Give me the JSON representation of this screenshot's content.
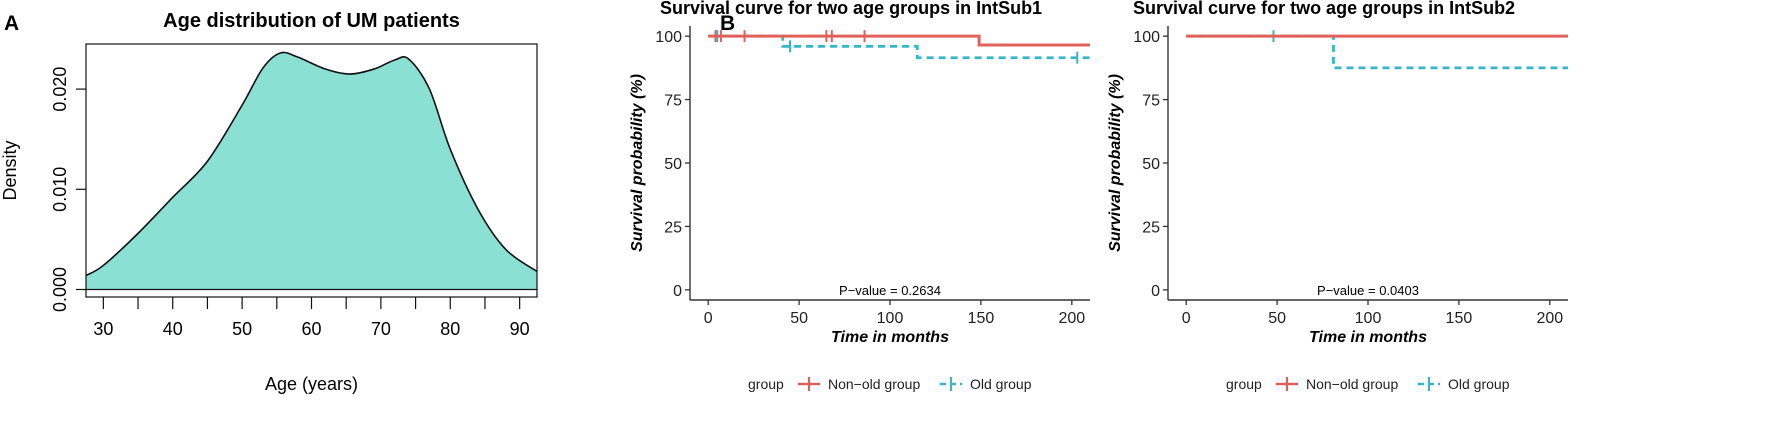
{
  "panels": {
    "a_letter": "A",
    "b_letter": "B"
  },
  "colors": {
    "density_fill": "#8ae0d2",
    "non_old": "#e0605a",
    "old": "#35b8c4",
    "axis": "#333333"
  },
  "chart_data": [
    {
      "type": "area",
      "title": "Age distribution of UM patients",
      "xlabel": "Age (years)",
      "ylabel": "Density",
      "xlim": [
        27.5,
        92.5
      ],
      "ylim": [
        -0.00075,
        0.0245
      ],
      "x_ticks": [
        30,
        40,
        50,
        60,
        70,
        80,
        90
      ],
      "x_tick_labels": [
        "30",
        "40",
        "50",
        "60",
        "70",
        "80",
        "90"
      ],
      "x_minor_ticks": [
        35,
        45,
        55,
        65,
        75,
        85
      ],
      "y_ticks": [
        0.0,
        0.01,
        0.02
      ],
      "y_tick_labels": [
        "0.000",
        "0.010",
        "0.020"
      ],
      "x": [
        27.5,
        30,
        35,
        40,
        45,
        50,
        53,
        55.5,
        58,
        62,
        65.5,
        69,
        72,
        74,
        77,
        80,
        84,
        88,
        92.5
      ],
      "y": [
        0.0014,
        0.0024,
        0.0056,
        0.0092,
        0.0128,
        0.0184,
        0.0221,
        0.0236,
        0.0232,
        0.022,
        0.0215,
        0.022,
        0.0229,
        0.023,
        0.02,
        0.014,
        0.008,
        0.004,
        0.0018
      ]
    },
    {
      "type": "line",
      "title": "Survival curve for two age groups in IntSub1",
      "xlabel": "Time in months",
      "ylabel": "Survival probability (%)",
      "xlim": [
        -10,
        210
      ],
      "ylim": [
        -4,
        104
      ],
      "x_ticks": [
        0,
        50,
        100,
        150,
        200
      ],
      "x_tick_labels": [
        "0",
        "50",
        "100",
        "150",
        "200"
      ],
      "y_ticks": [
        0,
        25,
        50,
        75,
        100
      ],
      "y_tick_labels": [
        "0",
        "25",
        "50",
        "75",
        "100"
      ],
      "annotation": "P−value = 0.2634",
      "annotation_at": [
        100,
        0
      ],
      "series": [
        {
          "name": "Non−old group",
          "steps": [
            [
              0,
              100
            ],
            [
              149,
              100
            ],
            [
              149,
              96.5
            ],
            [
              210,
              96.5
            ]
          ],
          "censor": [
            4,
            7,
            20,
            65,
            68,
            86
          ]
        },
        {
          "name": "Old group",
          "steps": [
            [
              0,
              100
            ],
            [
              41,
              100
            ],
            [
              41,
              96
            ],
            [
              115,
              96
            ],
            [
              115,
              91.5
            ],
            [
              210,
              91.5
            ]
          ],
          "censor": [
            5,
            45,
            203
          ]
        }
      ]
    },
    {
      "type": "line",
      "title": "Survival curve for two age groups in IntSub2",
      "xlabel": "Time in months",
      "ylabel": "Survival probability (%)",
      "xlim": [
        -10,
        210
      ],
      "ylim": [
        -4,
        104
      ],
      "x_ticks": [
        0,
        50,
        100,
        150,
        200
      ],
      "x_tick_labels": [
        "0",
        "50",
        "100",
        "150",
        "200"
      ],
      "y_ticks": [
        0,
        25,
        50,
        75,
        100
      ],
      "y_tick_labels": [
        "0",
        "25",
        "50",
        "75",
        "100"
      ],
      "annotation": "P−value = 0.0403",
      "annotation_at": [
        100,
        0
      ],
      "series": [
        {
          "name": "Non−old group",
          "steps": [
            [
              0,
              100
            ],
            [
              210,
              100
            ]
          ],
          "censor": []
        },
        {
          "name": "Old group",
          "steps": [
            [
              0,
              100
            ],
            [
              81,
              100
            ],
            [
              81,
              87.5
            ],
            [
              210,
              87.5
            ]
          ],
          "censor": [
            48
          ]
        }
      ]
    }
  ],
  "legend": {
    "title": "group",
    "items": [
      "Non−old group",
      "Old group"
    ]
  }
}
